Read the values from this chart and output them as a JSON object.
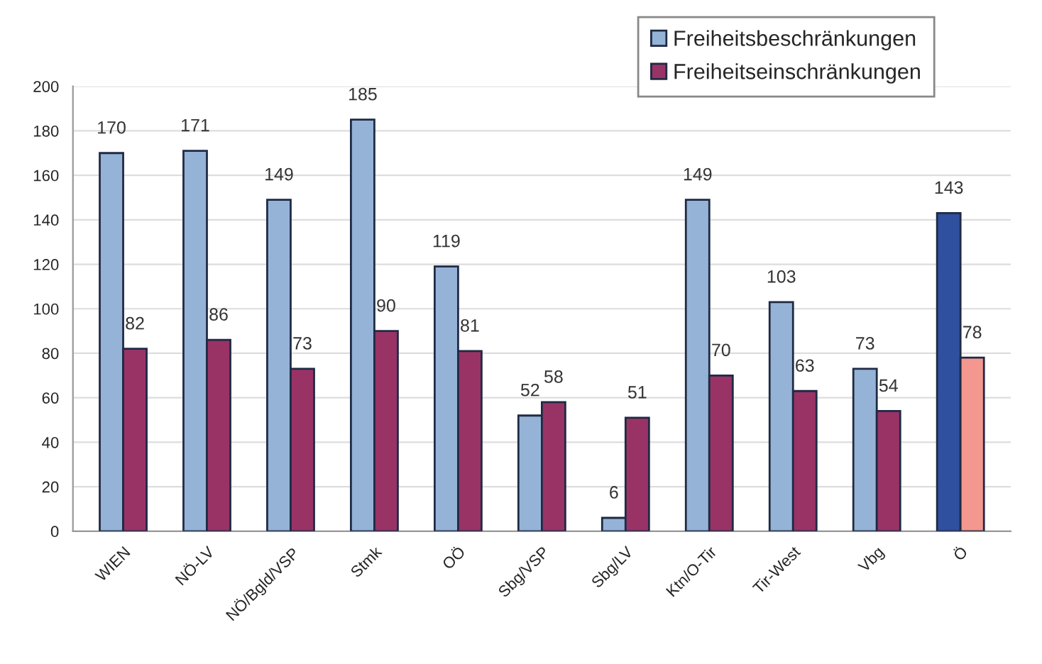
{
  "chart_data": {
    "type": "bar",
    "categories": [
      "WIEN",
      "NÖ-LV",
      "NÖ/Bgld/VSP",
      "Stmk",
      "OÖ",
      "Sbg/VSP",
      "Sbg/LV",
      "Ktn/O-Tir",
      "Tir-West",
      "Vbg",
      "Ö"
    ],
    "series": [
      {
        "name": "Freiheitsbeschränkungen",
        "color": "#95b3d7",
        "colors": [
          "#95b3d7",
          "#95b3d7",
          "#95b3d7",
          "#95b3d7",
          "#95b3d7",
          "#95b3d7",
          "#95b3d7",
          "#95b3d7",
          "#95b3d7",
          "#95b3d7",
          "#2f4f9f"
        ],
        "values": [
          170,
          171,
          149,
          185,
          119,
          52,
          6,
          149,
          103,
          73,
          143
        ]
      },
      {
        "name": "Freiheitseinschränkungen",
        "color": "#993366",
        "colors": [
          "#993366",
          "#993366",
          "#993366",
          "#993366",
          "#993366",
          "#993366",
          "#993366",
          "#993366",
          "#993366",
          "#993366",
          "#f4978e"
        ],
        "values": [
          82,
          86,
          73,
          90,
          81,
          58,
          51,
          70,
          63,
          54,
          78
        ]
      }
    ],
    "ylim": [
      0,
      200
    ],
    "yticks": [
      0,
      20,
      40,
      60,
      80,
      100,
      120,
      140,
      160,
      180,
      200
    ],
    "grid": "y",
    "legend": "top right",
    "data_labels": true
  }
}
